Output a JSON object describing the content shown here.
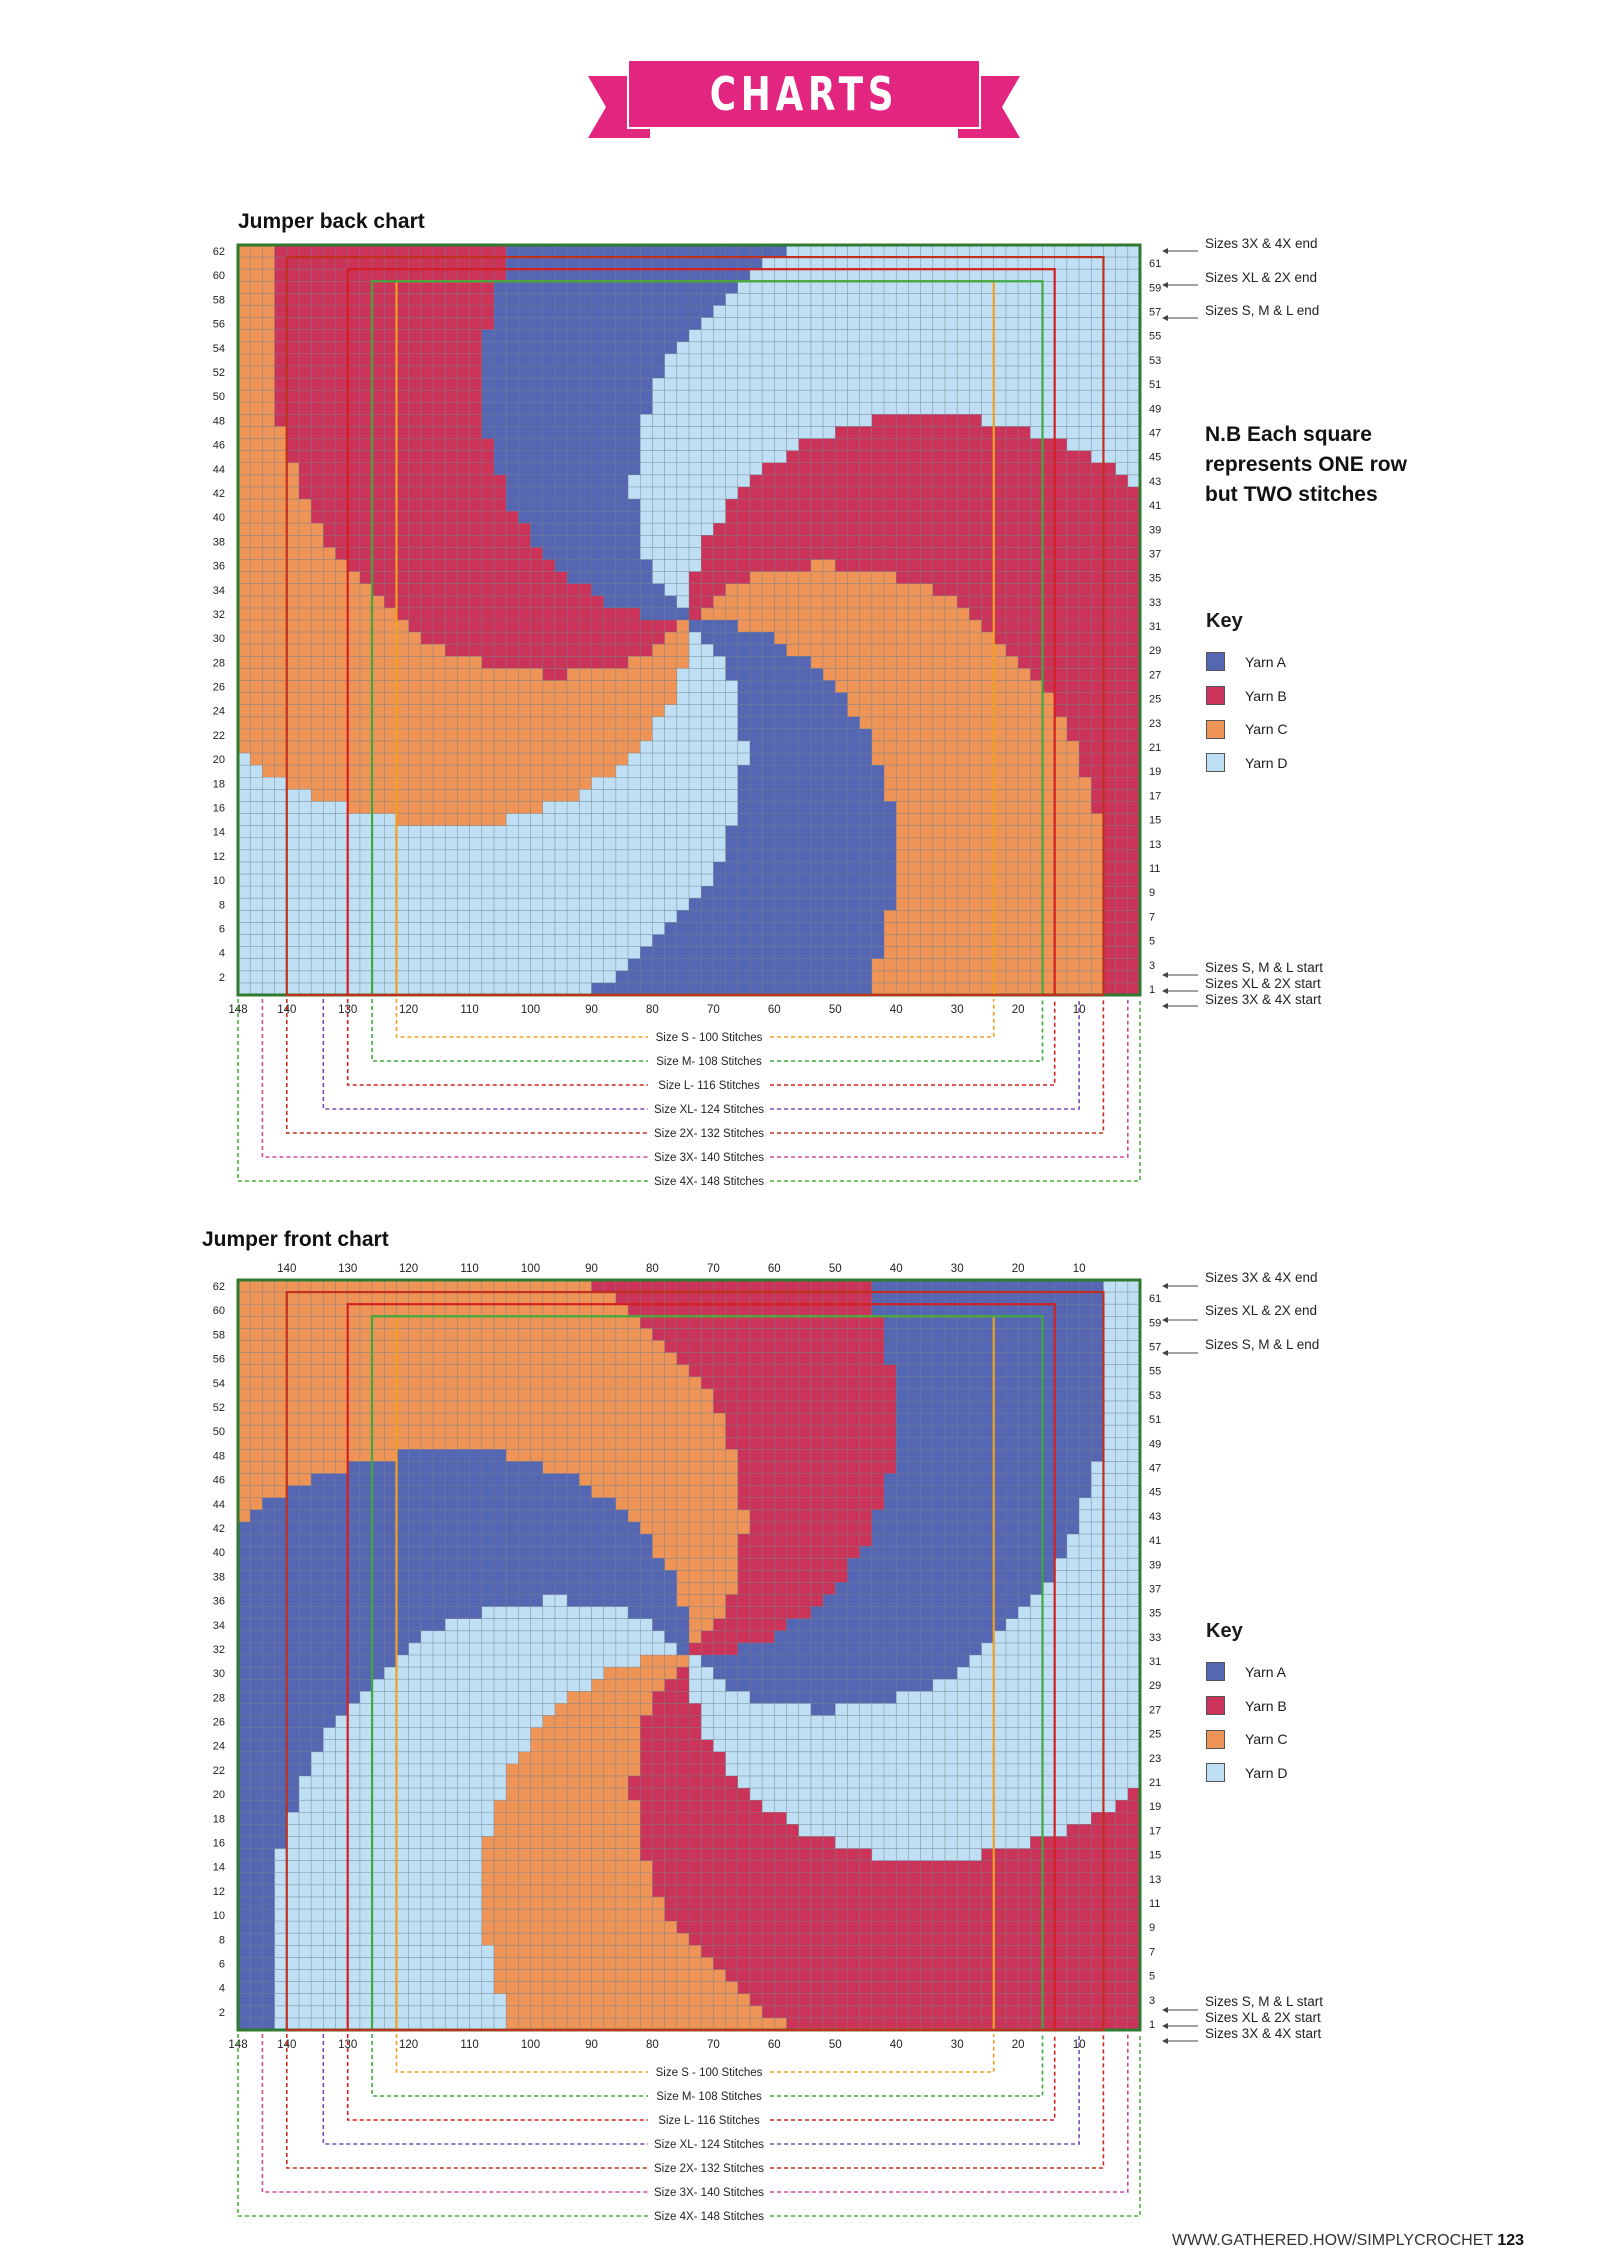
{
  "header": {
    "banner": "CHARTS",
    "banner_color": "#e2257f"
  },
  "colors": {
    "yarn_a": "#5566b3",
    "yarn_b": "#cc3358",
    "yarn_c": "#ef9457",
    "yarn_d": "#bfe0f4",
    "grid_line": "#6e7a86"
  },
  "note": {
    "line1": "N.B  Each square",
    "line2": "represents ONE row",
    "line3": "but TWO stitches"
  },
  "key": {
    "title": "Key",
    "items": [
      {
        "label": "Yarn A",
        "color": "#5566b3"
      },
      {
        "label": "Yarn B",
        "color": "#cc3358"
      },
      {
        "label": "Yarn C",
        "color": "#ef9457"
      },
      {
        "label": "Yarn D",
        "color": "#bfe0f4"
      }
    ]
  },
  "chart_data": [
    {
      "type": "table",
      "title": "Jumper back chart",
      "grid": {
        "columns": 74,
        "rows": 62
      },
      "left_row_numbers": [
        62,
        60,
        58,
        56,
        54,
        52,
        50,
        48,
        46,
        44,
        42,
        40,
        38,
        36,
        34,
        32,
        30,
        28,
        26,
        24,
        22,
        20,
        18,
        16,
        14,
        12,
        10,
        8,
        6,
        4,
        2
      ],
      "right_row_numbers": [
        61,
        59,
        57,
        55,
        53,
        51,
        49,
        47,
        45,
        43,
        41,
        39,
        37,
        35,
        33,
        31,
        29,
        27,
        25,
        23,
        21,
        19,
        17,
        15,
        13,
        11,
        9,
        7,
        5,
        3,
        1
      ],
      "stitch_numbers": [
        148,
        140,
        130,
        120,
        110,
        100,
        90,
        80,
        70,
        60,
        50,
        40,
        30,
        20,
        10
      ],
      "size_ends": [
        "Sizes 3X & 4X end",
        "Sizes XL & 2X end",
        "Sizes S, M & L end"
      ],
      "size_starts": [
        "Sizes S, M & L start",
        "Sizes XL & 2X start",
        "Sizes 3X & 4X start"
      ],
      "sizes": [
        {
          "label": "Size S - 100 Stitches",
          "color": "#f0a020"
        },
        {
          "label": "Size M- 108 Stitches",
          "color": "#3fa83f"
        },
        {
          "label": "Size L- 116 Stitches",
          "color": "#d42020"
        },
        {
          "label": "Size XL- 124 Stitches",
          "color": "#7b4bb5"
        },
        {
          "label": "Size 2X- 132 Stitches",
          "color": "#c0301e"
        },
        {
          "label": "Size 3X- 140 Stitches",
          "color": "#d04aa0"
        },
        {
          "label": "Size 4X- 148 Stitches",
          "color": "#4caf3a"
        }
      ]
    },
    {
      "type": "table",
      "title": "Jumper front chart",
      "grid": {
        "columns": 74,
        "rows": 62
      },
      "left_row_numbers": [
        62,
        60,
        58,
        56,
        54,
        52,
        50,
        48,
        46,
        44,
        42,
        40,
        38,
        36,
        34,
        32,
        30,
        28,
        26,
        24,
        22,
        20,
        18,
        16,
        14,
        12,
        10,
        8,
        6,
        4,
        2
      ],
      "right_row_numbers": [
        61,
        59,
        57,
        55,
        53,
        51,
        49,
        47,
        45,
        43,
        41,
        39,
        37,
        35,
        33,
        31,
        29,
        27,
        25,
        23,
        21,
        19,
        17,
        15,
        13,
        11,
        9,
        7,
        5,
        3,
        1
      ],
      "stitch_numbers": [
        148,
        140,
        130,
        120,
        110,
        100,
        90,
        80,
        70,
        60,
        50,
        40,
        30,
        20,
        10
      ],
      "top_stitch_numbers": [
        140,
        130,
        120,
        110,
        100,
        90,
        80,
        70,
        60,
        50,
        40,
        30,
        20,
        10
      ],
      "size_ends": [
        "Sizes 3X & 4X end",
        "Sizes XL & 2X end",
        "Sizes S, M & L end"
      ],
      "size_starts": [
        "Sizes S, M & L start",
        "Sizes XL & 2X start",
        "Sizes 3X & 4X start"
      ],
      "sizes": [
        {
          "label": "Size S - 100 Stitches",
          "color": "#f0a020"
        },
        {
          "label": "Size M- 108 Stitches",
          "color": "#3fa83f"
        },
        {
          "label": "Size L- 116 Stitches",
          "color": "#d42020"
        },
        {
          "label": "Size XL- 124 Stitches",
          "color": "#7b4bb5"
        },
        {
          "label": "Size 2X- 132 Stitches",
          "color": "#c0301e"
        },
        {
          "label": "Size 3X- 140 Stitches",
          "color": "#d04aa0"
        },
        {
          "label": "Size 4X- 148 Stitches",
          "color": "#4caf3a"
        }
      ]
    }
  ],
  "footer": {
    "site": "WWW.GATHERED.HOW/SIMPLYCROCHET",
    "page": "123"
  }
}
